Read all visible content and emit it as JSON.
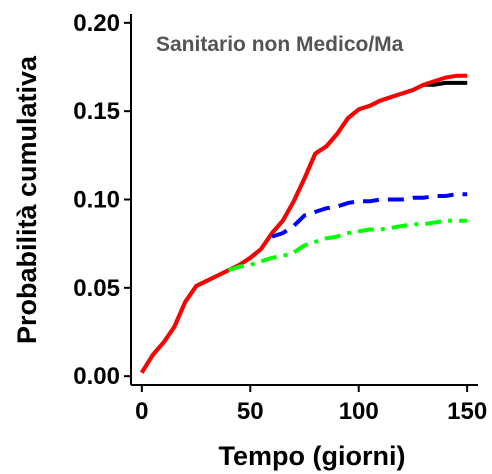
{
  "chart_data": {
    "type": "line",
    "title": "Sanitario non Medico/Ma",
    "xlabel": "Tempo (giorni)",
    "ylabel": "Probabilità cumulativa",
    "xlim": [
      -5,
      155
    ],
    "ylim": [
      -0.005,
      0.205
    ],
    "x_ticks": [
      0,
      50,
      100,
      150
    ],
    "x_tick_labels": [
      "0",
      "50",
      "100",
      "150"
    ],
    "y_ticks": [
      0,
      0.05,
      0.1,
      0.15,
      0.2
    ],
    "y_tick_labels": [
      "0.00",
      "0.05",
      "0.10",
      "0.15",
      "0.20"
    ],
    "grid": false,
    "series": [
      {
        "color": "#000000",
        "dash": "solid",
        "x": [
          0,
          5,
          10,
          15,
          20,
          25,
          30,
          35,
          40,
          45,
          50,
          55,
          60,
          65,
          70,
          75,
          80,
          85,
          90,
          95,
          100,
          105,
          110,
          115,
          120,
          125,
          130,
          135,
          140,
          145,
          150
        ],
        "y": [
          0.002,
          0.012,
          0.019,
          0.028,
          0.042,
          0.051,
          0.054,
          0.057,
          0.06,
          0.063,
          0.067,
          0.072,
          0.081,
          0.088,
          0.099,
          0.112,
          0.126,
          0.13,
          0.137,
          0.146,
          0.151,
          0.153,
          0.156,
          0.158,
          0.16,
          0.162,
          0.165,
          0.165,
          0.166,
          0.166,
          0.166
        ]
      },
      {
        "color": "#ff0000",
        "dash": "solid",
        "x": [
          0,
          5,
          10,
          15,
          20,
          25,
          30,
          35,
          40,
          45,
          50,
          55,
          60,
          65,
          70,
          75,
          80,
          85,
          90,
          95,
          100,
          105,
          110,
          115,
          120,
          125,
          130,
          135,
          140,
          145,
          150
        ],
        "y": [
          0.002,
          0.012,
          0.019,
          0.028,
          0.042,
          0.051,
          0.054,
          0.057,
          0.06,
          0.063,
          0.067,
          0.072,
          0.081,
          0.088,
          0.099,
          0.112,
          0.126,
          0.13,
          0.137,
          0.146,
          0.151,
          0.153,
          0.156,
          0.158,
          0.16,
          0.162,
          0.165,
          0.167,
          0.169,
          0.17,
          0.17
        ]
      },
      {
        "color": "#0000ff",
        "dash": "long-dash",
        "x": [
          60,
          65,
          70,
          75,
          80,
          85,
          90,
          95,
          100,
          105,
          110,
          115,
          120,
          125,
          130,
          135,
          140,
          145,
          150
        ],
        "y": [
          0.079,
          0.081,
          0.085,
          0.091,
          0.093,
          0.095,
          0.096,
          0.098,
          0.099,
          0.099,
          0.1,
          0.1,
          0.1,
          0.101,
          0.101,
          0.102,
          0.102,
          0.103,
          0.103
        ]
      },
      {
        "color": "#00ff00",
        "dash": "dot-dash",
        "x": [
          40,
          45,
          50,
          55,
          60,
          65,
          70,
          75,
          80,
          85,
          90,
          95,
          100,
          105,
          110,
          115,
          120,
          125,
          130,
          135,
          140,
          145,
          150
        ],
        "y": [
          0.06,
          0.062,
          0.063,
          0.065,
          0.067,
          0.068,
          0.07,
          0.074,
          0.076,
          0.078,
          0.079,
          0.081,
          0.082,
          0.083,
          0.083,
          0.084,
          0.085,
          0.086,
          0.086,
          0.087,
          0.088,
          0.088,
          0.088
        ]
      }
    ]
  }
}
